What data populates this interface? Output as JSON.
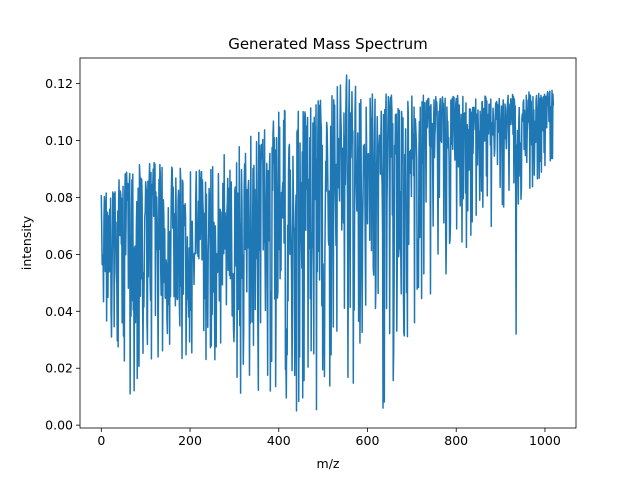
{
  "chart_data": {
    "type": "line",
    "title": "Generated Mass Spectrum",
    "xlabel": "m/z",
    "ylabel": "intensity",
    "xlim": [
      -48,
      1070
    ],
    "ylim": [
      -0.001,
      0.129
    ],
    "xticks": [
      0,
      200,
      400,
      600,
      800,
      1000
    ],
    "xtick_labels": [
      "0",
      "200",
      "400",
      "600",
      "800",
      "1000"
    ],
    "yticks": [
      0.0,
      0.02,
      0.04,
      0.06,
      0.08,
      0.1,
      0.12
    ],
    "ytick_labels": [
      "0.00",
      "0.02",
      "0.04",
      "0.06",
      "0.08",
      "0.10",
      "0.12"
    ],
    "grid": false,
    "series": [
      {
        "color": "#1f77b4",
        "x_start": 0,
        "x_end": 1019,
        "trend": [
          [
            0,
            0.06
          ],
          [
            100,
            0.058
          ],
          [
            200,
            0.06
          ],
          [
            300,
            0.064
          ],
          [
            400,
            0.072
          ],
          [
            500,
            0.082
          ],
          [
            600,
            0.088
          ],
          [
            700,
            0.096
          ],
          [
            800,
            0.102
          ],
          [
            900,
            0.106
          ],
          [
            1019,
            0.108
          ]
        ],
        "envelope_max": [
          [
            0,
            0.085
          ],
          [
            100,
            0.093
          ],
          [
            200,
            0.09
          ],
          [
            300,
            0.098
          ],
          [
            400,
            0.11
          ],
          [
            500,
            0.115
          ],
          [
            550,
            0.123
          ],
          [
            600,
            0.117
          ],
          [
            700,
            0.116
          ],
          [
            800,
            0.116
          ],
          [
            900,
            0.116
          ],
          [
            1019,
            0.118
          ]
        ],
        "envelope_min": [
          [
            0,
            0.038
          ],
          [
            65,
            0.011
          ],
          [
            150,
            0.019
          ],
          [
            250,
            0.022
          ],
          [
            320,
            0.01
          ],
          [
            440,
            0.005
          ],
          [
            560,
            0.005
          ],
          [
            635,
            0.006
          ],
          [
            700,
            0.03
          ],
          [
            800,
            0.06
          ],
          [
            900,
            0.07
          ],
          [
            1019,
            0.09
          ]
        ],
        "notable_points": [
          [
            553,
            0.123
          ],
          [
            440,
            0.005
          ],
          [
            635,
            0.006
          ],
          [
            935,
            0.032
          ],
          [
            65,
            0.011
          ]
        ]
      }
    ]
  }
}
